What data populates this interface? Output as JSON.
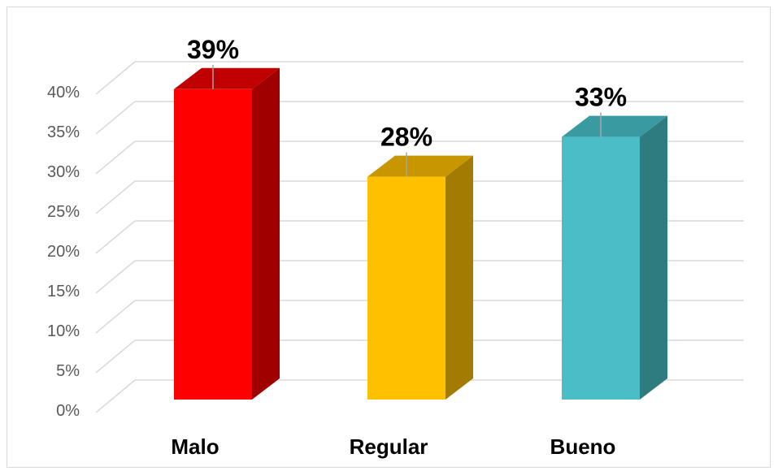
{
  "chart_data": {
    "type": "bar",
    "style": "3d-column",
    "categories": [
      "Malo",
      "Regular",
      "Bueno"
    ],
    "values": [
      39,
      28,
      33
    ],
    "data_labels": [
      "39%",
      "28%",
      "33%"
    ],
    "colors": {
      "front": [
        "#ff0000",
        "#ffc000",
        "#4bbdc6"
      ],
      "side": [
        "#a00000",
        "#a37b00",
        "#2e7b80"
      ],
      "top": [
        "#c00000",
        "#c89700",
        "#3a9aa2"
      ]
    },
    "yticks": [
      "0%",
      "5%",
      "10%",
      "15%",
      "20%",
      "25%",
      "30%",
      "35%",
      "40%"
    ],
    "ylim": [
      0,
      40
    ],
    "ytick_step": 5,
    "grid": true,
    "legend": "none",
    "title": "",
    "xlabel": "",
    "ylabel": ""
  }
}
